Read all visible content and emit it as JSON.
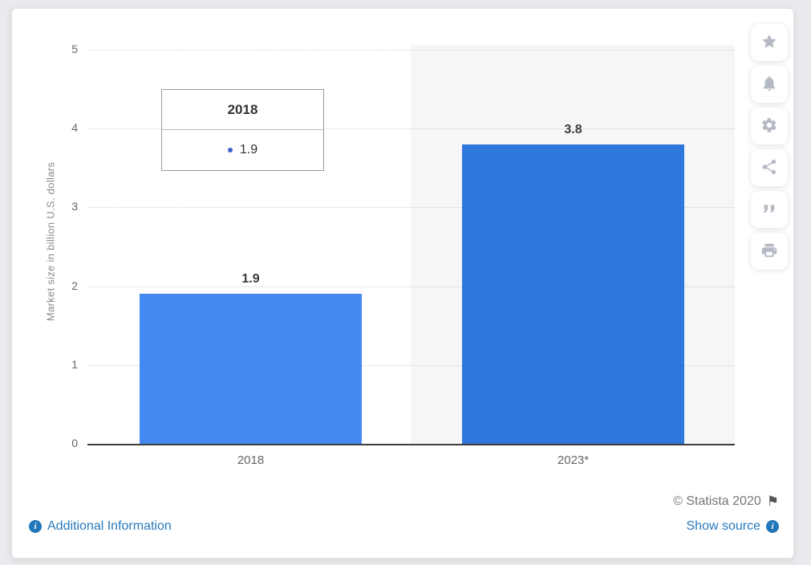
{
  "chart_data": {
    "type": "bar",
    "title": "",
    "categories": [
      "2018",
      "2023*"
    ],
    "values": [
      1.9,
      3.8
    ],
    "value_labels": [
      "1.9",
      "3.8"
    ],
    "xlabel": "",
    "ylabel": "Market size in billion U.S. dollars",
    "ylim": [
      0,
      5
    ],
    "yticks": [
      "5",
      "4",
      "3",
      "2",
      "1",
      "0"
    ],
    "grid": "dotted horizontal gridlines",
    "legend": "none",
    "bar_colors": [
      "#4489ef",
      "#2e77dc"
    ],
    "highlighted_category": "2023*",
    "highlight_band_color": "#f6f6f8"
  },
  "tooltip": {
    "title": "2018",
    "value": "1.9",
    "marker_color": "#3a64c8"
  },
  "toolbar": {
    "icons": [
      "star-icon",
      "bell-icon",
      "gear-icon",
      "share-icon",
      "quote-icon",
      "print-icon"
    ]
  },
  "footer": {
    "copyright": "© Statista 2020",
    "flag_glyph": "⚑",
    "additional_info_label": "Additional Information",
    "show_source_label": "Show source",
    "info_icon_glyph": "i",
    "link_color": "#2779bd"
  }
}
